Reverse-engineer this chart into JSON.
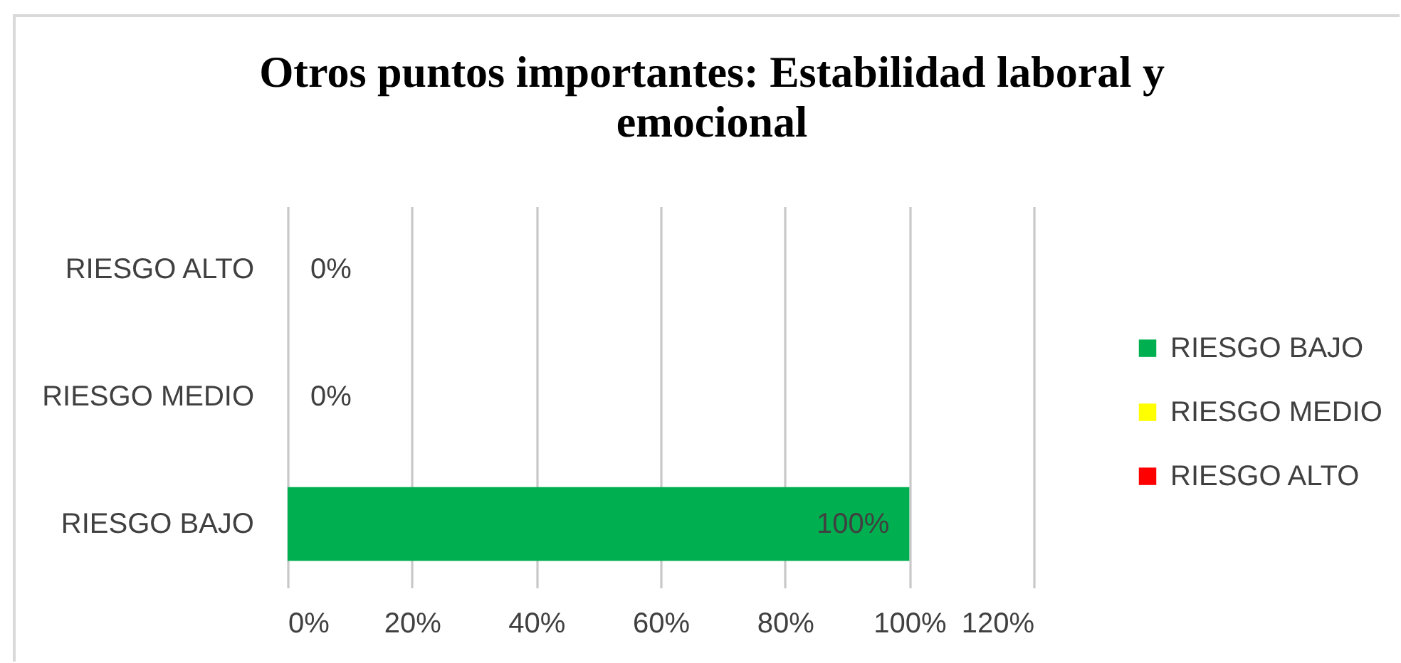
{
  "chart_data": {
    "type": "bar",
    "orientation": "horizontal",
    "stacked": true,
    "title": "Otros puntos importantes: Estabilidad laboral y emocional",
    "categories": [
      "RIESGO ALTO",
      "RIESGO MEDIO",
      "RIESGO BAJO"
    ],
    "series": [
      {
        "name": "RIESGO BAJO",
        "color": "#00b050",
        "values": [
          null,
          null,
          100
        ],
        "value_labels": [
          null,
          null,
          "100%"
        ]
      },
      {
        "name": "RIESGO MEDIO",
        "color": "#ffff00",
        "values": [
          null,
          0,
          null
        ],
        "value_labels": [
          null,
          "0%",
          null
        ]
      },
      {
        "name": "RIESGO ALTO",
        "color": "#ff0000",
        "values": [
          0,
          null,
          null
        ],
        "value_labels": [
          "0%",
          null,
          null
        ]
      }
    ],
    "xlim": [
      0,
      120
    ],
    "xticks": [
      {
        "value": 0,
        "label": "0%"
      },
      {
        "value": 20,
        "label": "20%"
      },
      {
        "value": 40,
        "label": "40%"
      },
      {
        "value": 60,
        "label": "60%"
      },
      {
        "value": 80,
        "label": "80%"
      },
      {
        "value": 100,
        "label": "100%"
      },
      {
        "value": 120,
        "label": "120%"
      }
    ],
    "grid": "x",
    "legend": "right"
  }
}
